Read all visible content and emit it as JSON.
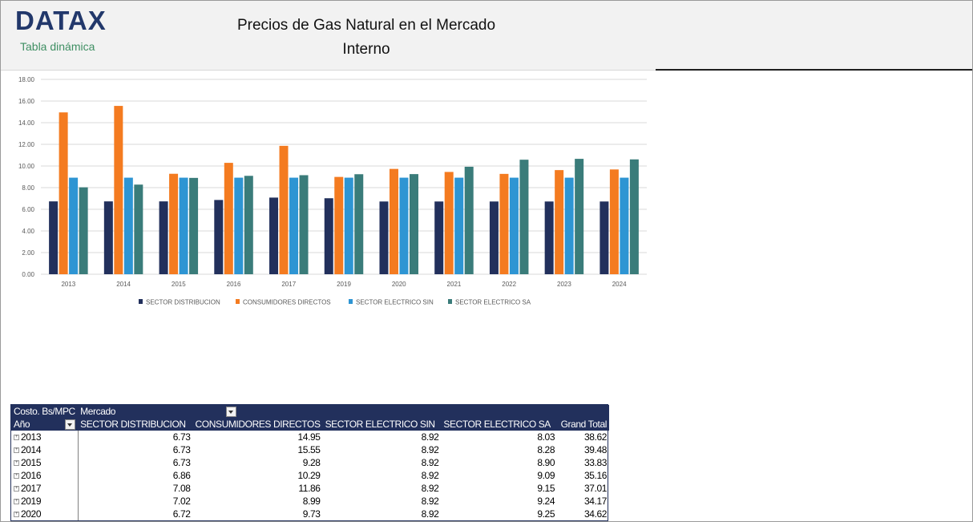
{
  "header": {
    "logo": "DATAX",
    "logo_sub": "Tabla dinámica",
    "title_line1": "Precios de Gas Natural en el Mercado",
    "title_line2": "Interno"
  },
  "chart_data": {
    "type": "bar",
    "categories": [
      "2013",
      "2014",
      "2015",
      "2016",
      "2017",
      "2019",
      "2020",
      "2021",
      "2022",
      "2023",
      "2024"
    ],
    "series": [
      {
        "name": "SECTOR DISTRIBUCION",
        "color": "#22305c",
        "values": [
          6.73,
          6.73,
          6.73,
          6.86,
          7.08,
          7.02,
          6.72,
          6.72,
          6.72,
          6.72,
          6.72
        ]
      },
      {
        "name": "CONSUMIDORES DIRECTOS",
        "color": "#f47b20",
        "values": [
          14.95,
          15.55,
          9.28,
          10.29,
          11.86,
          8.99,
          9.73,
          9.45,
          9.27,
          9.62,
          9.68
        ]
      },
      {
        "name": "SECTOR ELECTRICO SIN",
        "color": "#2e95d3",
        "values": [
          8.92,
          8.92,
          8.92,
          8.92,
          8.92,
          8.92,
          8.92,
          8.92,
          8.92,
          8.92,
          8.92
        ]
      },
      {
        "name": "SECTOR ELECTRICO SA",
        "color": "#3a7c7a",
        "values": [
          8.03,
          8.28,
          8.9,
          9.09,
          9.15,
          9.24,
          9.25,
          9.93,
          10.58,
          10.66,
          10.61
        ]
      }
    ],
    "yticks": [
      "0.00",
      "2.00",
      "4.00",
      "6.00",
      "8.00",
      "10.00",
      "12.00",
      "14.00",
      "16.00",
      "18.00"
    ],
    "ylim": [
      0,
      18
    ],
    "grid": true,
    "legend_position": "bottom"
  },
  "pivot": {
    "corner_label": "Costo. Bs/MPC",
    "col_field": "Mercado",
    "row_field": "Año",
    "columns": [
      "SECTOR DISTRIBUCION",
      "CONSUMIDORES DIRECTOS",
      "SECTOR ELECTRICO SIN",
      "SECTOR ELECTRICO SA",
      "Grand Total"
    ],
    "rows": [
      {
        "year": "2013",
        "values": [
          "6.73",
          "14.95",
          "8.92",
          "8.03",
          "38.62"
        ]
      },
      {
        "year": "2014",
        "values": [
          "6.73",
          "15.55",
          "8.92",
          "8.28",
          "39.48"
        ]
      },
      {
        "year": "2015",
        "values": [
          "6.73",
          "9.28",
          "8.92",
          "8.90",
          "33.83"
        ]
      },
      {
        "year": "2016",
        "values": [
          "6.86",
          "10.29",
          "8.92",
          "9.09",
          "35.16"
        ]
      },
      {
        "year": "2017",
        "values": [
          "7.08",
          "11.86",
          "8.92",
          "9.15",
          "37.01"
        ]
      },
      {
        "year": "2019",
        "values": [
          "7.02",
          "8.99",
          "8.92",
          "9.24",
          "34.17"
        ]
      },
      {
        "year": "2020",
        "values": [
          "6.72",
          "9.73",
          "8.92",
          "9.25",
          "34.62"
        ]
      }
    ]
  }
}
